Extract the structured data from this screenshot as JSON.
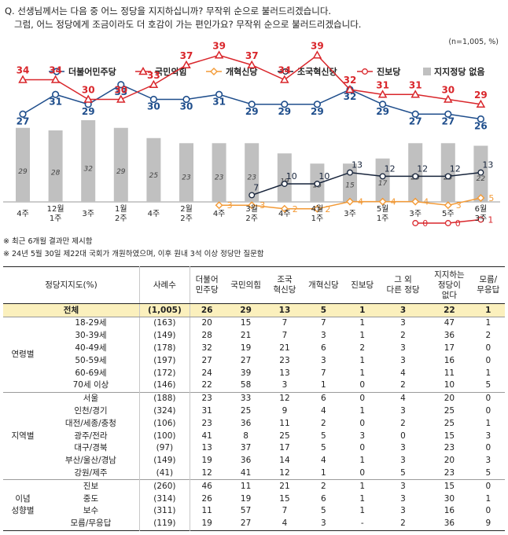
{
  "question": {
    "line1": "Q. 선생님께서는 다음 중 어느 정당을 지지하십니까? 무작위 순으로 불러드리겠습니다.",
    "line2": "그럼, 어느 정당에게 조금이라도 더 호감이 가는 편인가요? 무작위 순으로 불러드리겠습니다."
  },
  "unit_note": "(n=1,005, %)",
  "notes": [
    "※ 최근 6개월 결과만 제시함",
    "※ 24년 5월 30일 제22대 국회가 개원하였으며, 이후 원내 3석 이상 정당만 질문함"
  ],
  "chart_data": {
    "type": "line",
    "x": [
      "4주",
      "12월 1주",
      "3주",
      "1월 2주",
      "4주",
      "2월 2주",
      "4주",
      "3월 2주",
      "4주",
      "4월 1주",
      "3주",
      "5월 1주",
      "3주",
      "5주",
      "6월 3주"
    ],
    "x_lines": [
      [
        "4주",
        ""
      ],
      [
        "12월",
        "1주"
      ],
      [
        "3주",
        ""
      ],
      [
        "1월",
        "2주"
      ],
      [
        "4주",
        ""
      ],
      [
        "2월",
        "2주"
      ],
      [
        "4주",
        ""
      ],
      [
        "3월",
        "2주"
      ],
      [
        "4주",
        ""
      ],
      [
        "4월",
        "1주"
      ],
      [
        "3주",
        ""
      ],
      [
        "5월",
        "1주"
      ],
      [
        "3주",
        ""
      ],
      [
        "5주",
        ""
      ],
      [
        "6월",
        "3주"
      ]
    ],
    "legend_position": "top",
    "series": [
      {
        "name": "더불어민주당",
        "color": "#1f4e8c",
        "marker": "circle",
        "values": [
          27,
          31,
          29,
          33,
          30,
          30,
          31,
          29,
          29,
          29,
          32,
          29,
          27,
          27,
          26
        ]
      },
      {
        "name": "국민의힘",
        "color": "#d9262b",
        "marker": "triangle",
        "values": [
          34,
          34,
          30,
          30,
          33,
          37,
          39,
          37,
          34,
          39,
          32,
          31,
          31,
          30,
          29
        ]
      },
      {
        "name": "개혁신당",
        "color": "#f39a36",
        "marker": "diamond",
        "start": 6,
        "values": [
          null,
          null,
          null,
          null,
          null,
          null,
          3,
          3,
          2,
          2,
          4,
          4,
          4,
          3,
          5
        ]
      },
      {
        "name": "조국혁신당",
        "color": "#17243b",
        "marker": "circle-open",
        "start": 7,
        "values": [
          null,
          null,
          null,
          null,
          null,
          null,
          null,
          7,
          10,
          10,
          13,
          12,
          12,
          12,
          13
        ]
      },
      {
        "name": "진보당",
        "color": "#d9262b",
        "marker": "circle-open",
        "start": 12,
        "values": [
          null,
          null,
          null,
          null,
          null,
          null,
          null,
          null,
          null,
          null,
          null,
          null,
          0,
          0,
          1
        ]
      }
    ],
    "bar_series": {
      "name": "지지정당 없음",
      "color": "#c0c0c0",
      "values": [
        29,
        28,
        32,
        29,
        25,
        23,
        23,
        23,
        19,
        15,
        15,
        17,
        23,
        23,
        22
      ]
    }
  },
  "table": {
    "headers": [
      "정당지지도(%)",
      "사례수",
      "더불어 민주당",
      "국민의힘",
      "조국 혁신당",
      "개혁신당",
      "진보당",
      "그 외 다른 정당",
      "지지하는 정당이 없다",
      "모름/ 무응답"
    ],
    "header_lines": [
      [
        "정당지지도(%)"
      ],
      [
        "사례수"
      ],
      [
        "더불어",
        "민주당"
      ],
      [
        "국민의힘"
      ],
      [
        "조국",
        "혁신당"
      ],
      [
        "개혁신당"
      ],
      [
        "진보당"
      ],
      [
        "그 외",
        "다른 정당"
      ],
      [
        "지지하는",
        "정당이",
        "없다"
      ],
      [
        "모름/",
        "무응답"
      ]
    ],
    "total": {
      "label": "전체",
      "n": "(1,005)",
      "vals": [
        "26",
        "29",
        "13",
        "5",
        "1",
        "3",
        "22",
        "1"
      ]
    },
    "groups": [
      {
        "label": [
          "연령별"
        ],
        "rows": [
          {
            "label": "18-29세",
            "n": "(163)",
            "vals": [
              "20",
              "15",
              "7",
              "7",
              "1",
              "3",
              "47",
              "1"
            ]
          },
          {
            "label": "30-39세",
            "n": "(149)",
            "vals": [
              "28",
              "21",
              "7",
              "3",
              "1",
              "2",
              "36",
              "2"
            ]
          },
          {
            "label": "40-49세",
            "n": "(178)",
            "vals": [
              "32",
              "19",
              "21",
              "6",
              "2",
              "3",
              "17",
              "0"
            ]
          },
          {
            "label": "50-59세",
            "n": "(197)",
            "vals": [
              "27",
              "27",
              "23",
              "3",
              "1",
              "3",
              "16",
              "0"
            ]
          },
          {
            "label": "60-69세",
            "n": "(172)",
            "vals": [
              "24",
              "39",
              "13",
              "7",
              "1",
              "4",
              "11",
              "1"
            ]
          },
          {
            "label": "70세 이상",
            "n": "(146)",
            "vals": [
              "22",
              "58",
              "3",
              "1",
              "0",
              "2",
              "10",
              "5"
            ]
          }
        ]
      },
      {
        "label": [
          "지역별"
        ],
        "rows": [
          {
            "label": "서울",
            "n": "(188)",
            "vals": [
              "23",
              "33",
              "12",
              "6",
              "0",
              "4",
              "20",
              "0"
            ]
          },
          {
            "label": "인천/경기",
            "n": "(324)",
            "vals": [
              "31",
              "25",
              "9",
              "4",
              "1",
              "3",
              "25",
              "0"
            ]
          },
          {
            "label": "대전/세종/충청",
            "n": "(106)",
            "vals": [
              "23",
              "36",
              "11",
              "2",
              "0",
              "2",
              "25",
              "1"
            ]
          },
          {
            "label": "광주/전라",
            "n": "(100)",
            "vals": [
              "41",
              "8",
              "25",
              "5",
              "3",
              "0",
              "15",
              "3"
            ]
          },
          {
            "label": "대구/경북",
            "n": "(97)",
            "vals": [
              "13",
              "37",
              "17",
              "5",
              "0",
              "3",
              "23",
              "0"
            ]
          },
          {
            "label": "부산/울산/경남",
            "n": "(149)",
            "vals": [
              "19",
              "36",
              "14",
              "4",
              "1",
              "3",
              "20",
              "3"
            ]
          },
          {
            "label": "강원/제주",
            "n": "(41)",
            "vals": [
              "12",
              "41",
              "12",
              "1",
              "0",
              "5",
              "23",
              "5"
            ]
          }
        ]
      },
      {
        "label": [
          "이념",
          "성향별"
        ],
        "rows": [
          {
            "label": "진보",
            "n": "(260)",
            "vals": [
              "46",
              "11",
              "21",
              "2",
              "1",
              "3",
              "15",
              "0"
            ]
          },
          {
            "label": "중도",
            "n": "(314)",
            "vals": [
              "26",
              "19",
              "15",
              "6",
              "1",
              "3",
              "30",
              "1"
            ]
          },
          {
            "label": "보수",
            "n": "(311)",
            "vals": [
              "11",
              "57",
              "7",
              "5",
              "1",
              "3",
              "16",
              "0"
            ]
          },
          {
            "label": "모름/무응답",
            "n": "(119)",
            "vals": [
              "19",
              "27",
              "4",
              "3",
              "-",
              "2",
              "36",
              "9"
            ]
          }
        ]
      }
    ]
  }
}
